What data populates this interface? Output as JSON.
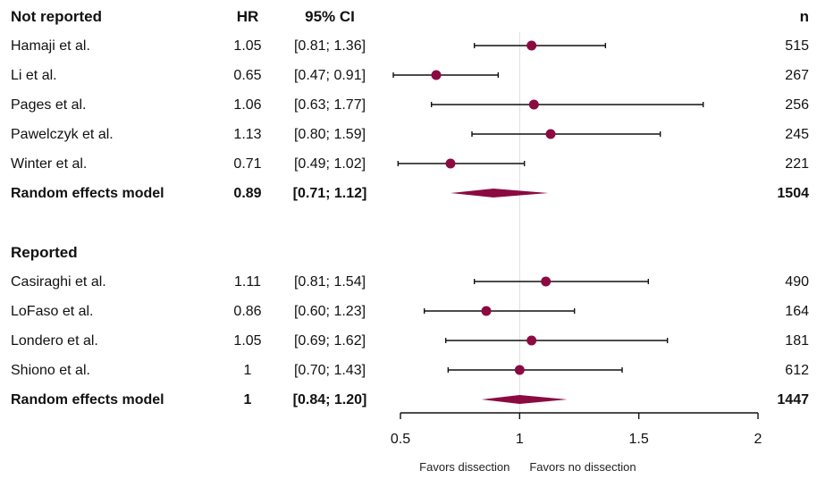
{
  "columns": {
    "hr": "HR",
    "ci": "95% CI",
    "n": "n"
  },
  "colors": {
    "marker": "#8b0a42",
    "line": "#111111",
    "refline": "#dddddd"
  },
  "chart_data": {
    "type": "forest",
    "xscale": "linear",
    "xlim": [
      0.5,
      2
    ],
    "xticks": [
      "0.5",
      "1",
      "1.5",
      "2"
    ],
    "reference_line": 1,
    "axis_notes": {
      "left": "Favors dissection",
      "right": "Favors no dissection"
    },
    "groups": [
      {
        "title": "Not reported",
        "studies": [
          {
            "name": "Hamaji et al.",
            "hr_label": "1.05",
            "ci_label": "[0.81; 1.36]",
            "n": "515",
            "hr": 1.05,
            "lo": 0.81,
            "hi": 1.36
          },
          {
            "name": "Li et al.",
            "hr_label": "0.65",
            "ci_label": "[0.47; 0.91]",
            "n": "267",
            "hr": 0.65,
            "lo": 0.47,
            "hi": 0.91
          },
          {
            "name": "Pages et al.",
            "hr_label": "1.06",
            "ci_label": "[0.63; 1.77]",
            "n": "256",
            "hr": 1.06,
            "lo": 0.63,
            "hi": 1.77
          },
          {
            "name": "Pawelczyk et al.",
            "hr_label": "1.13",
            "ci_label": "[0.80; 1.59]",
            "n": "245",
            "hr": 1.13,
            "lo": 0.8,
            "hi": 1.59
          },
          {
            "name": "Winter et al.",
            "hr_label": "0.71",
            "ci_label": "[0.49; 1.02]",
            "n": "221",
            "hr": 0.71,
            "lo": 0.49,
            "hi": 1.02
          }
        ],
        "summary": {
          "name": "Random effects model",
          "hr_label": "0.89",
          "ci_label": "[0.71; 1.12]",
          "n": "1504",
          "hr": 0.89,
          "lo": 0.71,
          "hi": 1.12
        }
      },
      {
        "title": "Reported",
        "studies": [
          {
            "name": "Casiraghi et al.",
            "hr_label": "1.11",
            "ci_label": "[0.81; 1.54]",
            "n": "490",
            "hr": 1.11,
            "lo": 0.81,
            "hi": 1.54
          },
          {
            "name": "LoFaso et al.",
            "hr_label": "0.86",
            "ci_label": "[0.60; 1.23]",
            "n": "164",
            "hr": 0.86,
            "lo": 0.6,
            "hi": 1.23
          },
          {
            "name": "Londero et al.",
            "hr_label": "1.05",
            "ci_label": "[0.69; 1.62]",
            "n": "181",
            "hr": 1.05,
            "lo": 0.69,
            "hi": 1.62
          },
          {
            "name": "Shiono et al.",
            "hr_label": "1",
            "ci_label": "[0.70; 1.43]",
            "n": "612",
            "hr": 1.0,
            "lo": 0.7,
            "hi": 1.43
          }
        ],
        "summary": {
          "name": "Random effects model",
          "hr_label": "1",
          "ci_label": "[0.84; 1.20]",
          "n": "1447",
          "hr": 1.0,
          "lo": 0.84,
          "hi": 1.2
        }
      }
    ]
  }
}
